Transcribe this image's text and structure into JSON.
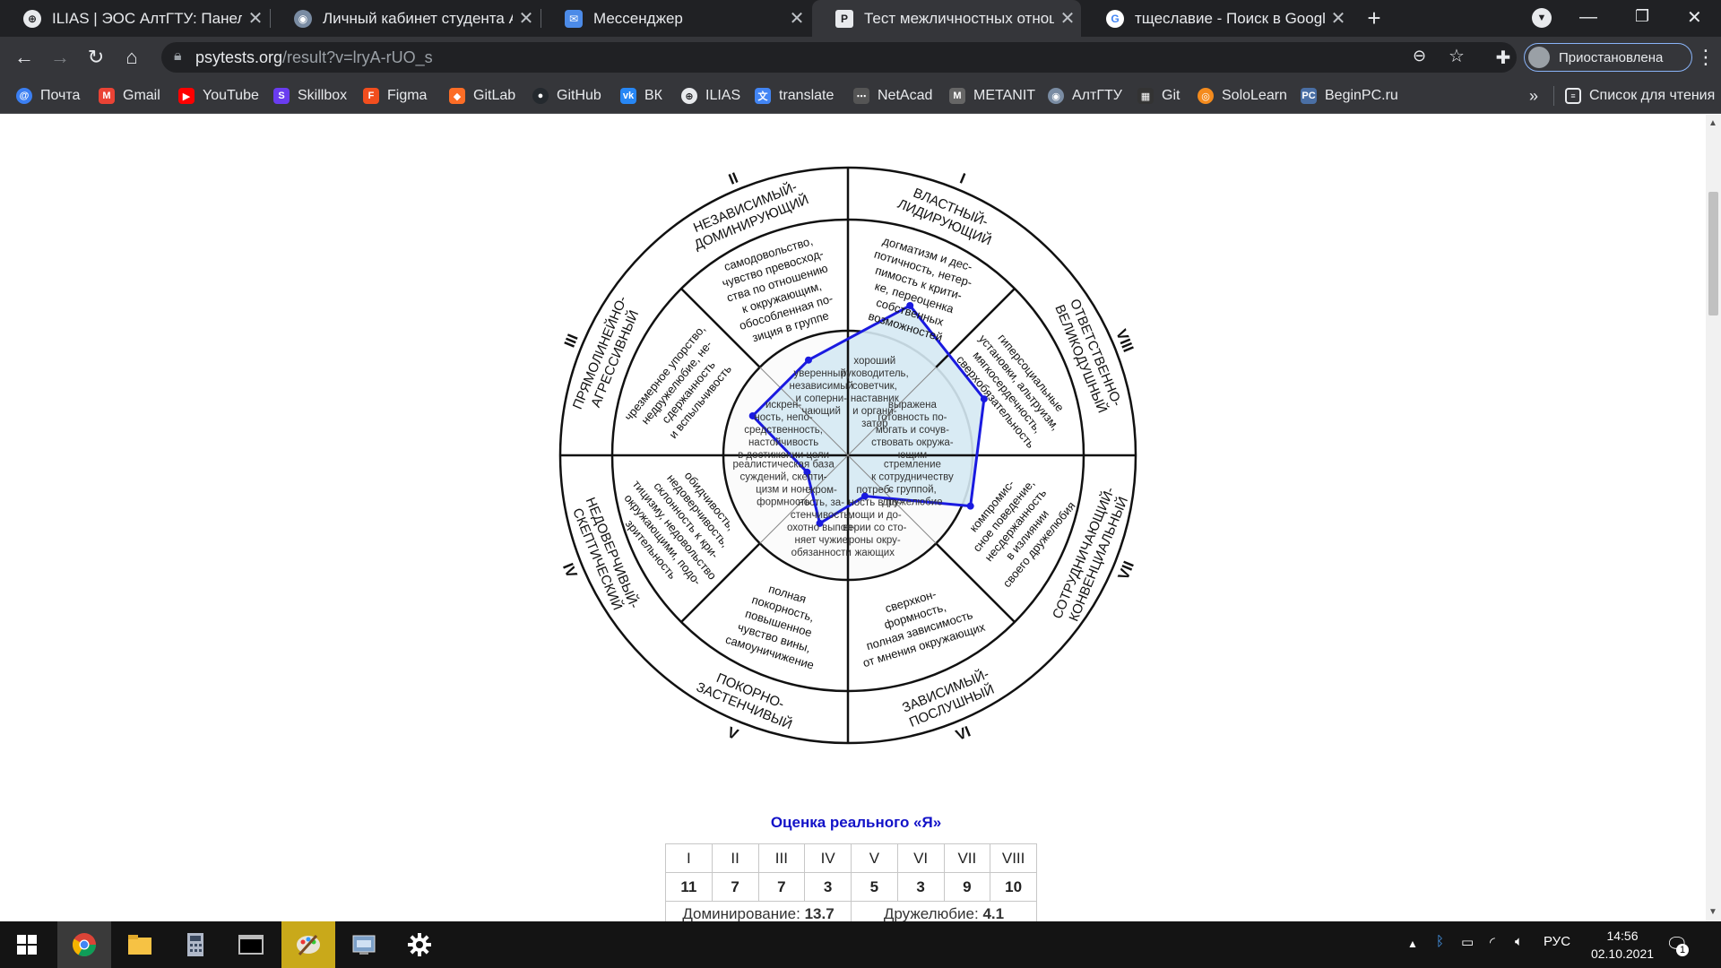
{
  "tabs": [
    {
      "title": "ILIAS | ЭОС АлтГТУ: Панель упра",
      "icon": "globe-icon"
    },
    {
      "title": "Личный кабинет студента АлтГТ",
      "icon": "university-icon"
    },
    {
      "title": "Мессенджер",
      "icon": "messenger-icon"
    },
    {
      "title": "Тест межличностных отношений",
      "icon": "psytests-icon",
      "active": true
    },
    {
      "title": "тщеславие - Поиск в Google",
      "icon": "google-icon"
    }
  ],
  "address": {
    "domain": "psytests.org",
    "path": "/result?v=lryA-rUO_s"
  },
  "profile": {
    "label": "Приостановлена"
  },
  "bookmarks": [
    {
      "label": "Почта",
      "color": "#3b7ff2"
    },
    {
      "label": "Gmail",
      "color": "#ea4335"
    },
    {
      "label": "YouTube",
      "color": "#ff0000"
    },
    {
      "label": "Skillbox",
      "color": "#6a3cf0"
    },
    {
      "label": "Figma",
      "color": "#f24e1e"
    },
    {
      "label": "GitLab",
      "color": "#fc6d26"
    },
    {
      "label": "GitHub",
      "color": "#24292e"
    },
    {
      "label": "ВК",
      "color": "#2787f5"
    },
    {
      "label": "ILIAS",
      "color": "#5f6368"
    },
    {
      "label": "translate",
      "color": "#4285f4"
    },
    {
      "label": "NetAcad",
      "color": "#555555"
    },
    {
      "label": "METANIT",
      "color": "#666666"
    },
    {
      "label": "АлтГТУ",
      "color": "#7a8ca3"
    },
    {
      "label": "Git",
      "color": "#333333"
    },
    {
      "label": "SoloLearn",
      "color": "#f48b1d"
    },
    {
      "label": "BeginPC.ru",
      "color": "#4a6fa5"
    }
  ],
  "bookmarks_more": "»",
  "reading_list": "Список для чтения",
  "wheel": {
    "octant_labels": [
      {
        "roman": "I",
        "name": [
          "ВЛАСТНЫЙ-",
          "ЛИДИРУЮЩИЙ"
        ]
      },
      {
        "roman": "II",
        "name": [
          "НЕЗАВИСИМЫЙ-",
          "ДОМИНИРУЮЩИЙ"
        ]
      },
      {
        "roman": "III",
        "name": [
          "ПРЯМОЛИНЕЙНО-",
          "АГРЕССИВНЫЙ"
        ]
      },
      {
        "roman": "IV",
        "name": [
          "НЕДОВЕРЧИВЫЙ-",
          "СКЕПТИЧЕСКИЙ"
        ]
      },
      {
        "roman": "V",
        "name": [
          "ПОКОРНО-",
          "ЗАСТЕНЧИВЫЙ"
        ]
      },
      {
        "roman": "VI",
        "name": [
          "ЗАВИСИМЫЙ-",
          "ПОСЛУШНЫЙ"
        ]
      },
      {
        "roman": "VII",
        "name": [
          "СОТРУДНИЧАЮЩИЙ-",
          "КОНВЕНЦИАЛЬНЫЙ"
        ]
      },
      {
        "roman": "VIII",
        "name": [
          "ОТВЕТСТВЕННО-",
          "ВЕЛИКОДУШНЫЙ"
        ]
      }
    ],
    "outer_texts": [
      [
        "догматизм и дес-",
        "потичность, нетер-",
        "пимость к крити-",
        "ке, переоценка",
        "собственных",
        "возможностей"
      ],
      [
        "самодовольство,",
        "чувство превосход-",
        "ства по отношению",
        "к окружающим,",
        "обособленная по-",
        "зиция в группе"
      ],
      [
        "чрезмерное упорство,",
        "недружелюбие, не-",
        "сдержанность",
        "и вспыльчивость"
      ],
      [
        "обидчивость,",
        "недоверчивость,",
        "склонность к кри-",
        "тицизму, недовольство",
        "окружающими, подо-",
        "зрительность"
      ],
      [
        "полная",
        "покорность,",
        "повышенное",
        "чувство вины,",
        "самоуничижение"
      ],
      [
        "сверхкон-",
        "формность,",
        "полная зависимость",
        "от мнения окружающих"
      ],
      [
        "компромис-",
        "сное поведение,",
        "несдержанность",
        "в излиянии",
        "своего дружелюбия"
      ],
      [
        "гиперсоциальные",
        "установки, альтруизм,",
        "мягкосердечность,",
        "сверхобязательность"
      ]
    ],
    "inner_texts": [
      [
        "хороший",
        "руководитель,",
        "советчик,",
        "наставник",
        "и органи-",
        "затор"
      ],
      [
        "уверенный,",
        "независимый",
        "и соперни-",
        "чающий"
      ],
      [
        "искрен-",
        "ность, непо-",
        "средственность,",
        "настойчивость",
        "в достижении цели"
      ],
      [
        "реалистическая база",
        "суждений, скепти-",
        "цизм и нон-",
        "формность"
      ],
      [
        "скром-",
        "ность, за-",
        "стенчивость,",
        "охотно выпол-",
        "няет чужие",
        "обязанности"
      ],
      [
        "потреб-",
        "ность в по-",
        "мощи и до-",
        "верии со сто-",
        "роны окру-",
        "жающих"
      ],
      [
        "стремление",
        "к сотрудничеству",
        "с группой,",
        "дружелюбие"
      ],
      [
        "выражена",
        "готовность по-",
        "могать и сочув-",
        "ствовать окружа-",
        "ющим"
      ]
    ]
  },
  "results": {
    "title": "Оценка реального «Я»",
    "headers": [
      "I",
      "II",
      "III",
      "IV",
      "V",
      "VI",
      "VII",
      "VIII"
    ],
    "values": [
      11,
      7,
      7,
      3,
      5,
      3,
      9,
      10
    ],
    "domination_label": "Доминирование:",
    "domination": "13.7",
    "friendliness_label": "Дружелюбие:",
    "friendliness": "4.1"
  },
  "taskbar": {
    "lang": "РУС",
    "time": "14:56",
    "date": "02.10.2021",
    "notif_count": "1"
  },
  "colors": {
    "profile_line": "#1a1ae0",
    "profile_fill": "#d5e9f3",
    "title_blue": "#1212c8"
  }
}
